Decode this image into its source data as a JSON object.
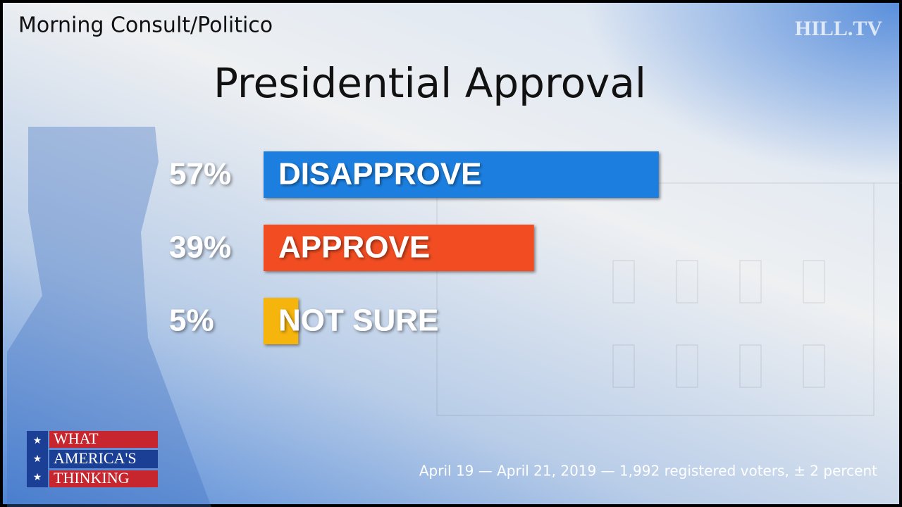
{
  "chart_data": {
    "type": "bar",
    "orientation": "horizontal",
    "source": "Morning Consult/Politico",
    "title": "Presidential Approval",
    "categories": [
      "DISAPPROVE",
      "APPROVE",
      "NOT SURE"
    ],
    "values": [
      57,
      39,
      5
    ],
    "value_labels": [
      "57%",
      "39%",
      "5%"
    ],
    "colors": [
      "#1a7fe0",
      "#f24d22",
      "#f6b50a"
    ],
    "footnote": "April 19 — April 21, 2019 — 1,992 registered voters, ± 2 percent"
  },
  "branding": {
    "network": "HILL.TV",
    "badge": [
      "WHAT",
      "AMERICA'S",
      "THINKING"
    ]
  }
}
